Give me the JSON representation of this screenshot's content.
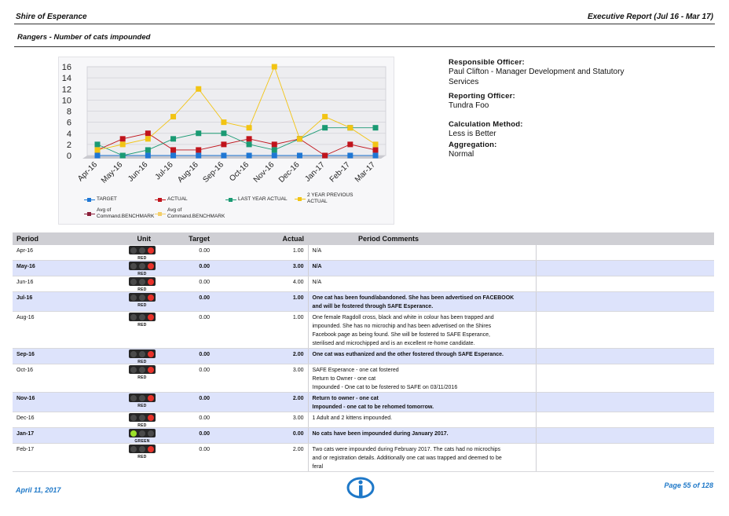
{
  "header": {
    "org": "Shire of Esperance",
    "report": "Executive Report (Jul 16 - Mar 17)",
    "subtitle": "Rangers - Number of cats impounded"
  },
  "info": {
    "responsible_label": "Responsible Officer:",
    "responsible_value": "Paul Clifton - Manager Development and Statutory Services",
    "reporting_label": "Reporting Officer:",
    "reporting_value": "Tundra Foo",
    "calc_label": "Calculation Method:",
    "calc_value": "Less is Better",
    "agg_label": "Aggregation:",
    "agg_value": "Normal"
  },
  "chart_data": {
    "type": "line",
    "categories": [
      "Apr-16",
      "May-16",
      "Jun-16",
      "Jul-16",
      "Aug-16",
      "Sep-16",
      "Oct-16",
      "Nov-16",
      "Dec-16",
      "Jan-17",
      "Feb-17",
      "Mar-17"
    ],
    "ylim": [
      0,
      16
    ],
    "yticks": [
      0,
      2,
      4,
      6,
      8,
      10,
      12,
      14,
      16
    ],
    "grid": true,
    "legend_position": "bottom",
    "series": [
      {
        "name": "TARGET",
        "color": "#1f77d4",
        "values": [
          0,
          0,
          0,
          0,
          0,
          0,
          0,
          0,
          0,
          0,
          0,
          0
        ]
      },
      {
        "name": "ACTUAL",
        "color": "#c0141c",
        "values": [
          1,
          3,
          4,
          1,
          1,
          2,
          3,
          2,
          3,
          0,
          2,
          1
        ]
      },
      {
        "name": "LAST YEAR ACTUAL",
        "color": "#1a9a73",
        "values": [
          2,
          0,
          1,
          3,
          4,
          4,
          2,
          1,
          3,
          5,
          5,
          5
        ]
      },
      {
        "name": "2 YEAR PREVIOUS ACTUAL",
        "color": "#f2c414",
        "values": [
          1,
          2,
          3,
          7,
          12,
          6,
          5,
          16,
          3,
          7,
          5,
          2
        ]
      }
    ],
    "benchmarks": [
      {
        "name": "Avg of Command.BENCHMARK",
        "color": "#8b1f3a"
      },
      {
        "name": "Avg of Command.BENCHMARK",
        "color": "#f4cf6a"
      }
    ]
  },
  "table": {
    "headers": {
      "period": "Period",
      "unit": "Unit",
      "target": "Target",
      "actual": "Actual",
      "comments": "Period Comments"
    },
    "rows": [
      {
        "period": "Apr-16",
        "status": "RED",
        "unit": "#",
        "target": "0.00",
        "actual": "1.00",
        "comments": [
          "N/A"
        ]
      },
      {
        "period": "May-16",
        "status": "RED",
        "unit": "#",
        "target": "0.00",
        "actual": "3.00",
        "comments": [
          "N/A"
        ]
      },
      {
        "period": "Jun-16",
        "status": "RED",
        "unit": "#",
        "target": "0.00",
        "actual": "4.00",
        "comments": [
          "N/A"
        ]
      },
      {
        "period": "Jul-16",
        "status": "RED",
        "unit": "#",
        "target": "0.00",
        "actual": "1.00",
        "comments": [
          "One cat has been found/abandoned. She has been advertised on FACEBOOK",
          "and will be fostered through SAFE Esperance."
        ]
      },
      {
        "period": "Aug-16",
        "status": "RED",
        "unit": "#",
        "target": "0.00",
        "actual": "1.00",
        "comments": [
          "One female Ragdoll cross, black and white in colour has been trapped and",
          "impounded. She has no microchip and has been advertised on the Shires",
          "Facebook page as being found. She will be fostered to SAFE Esperance,",
          "sterilised and microchipped and is an excellent re-home candidate."
        ]
      },
      {
        "period": "Sep-16",
        "status": "RED",
        "unit": "#",
        "target": "0.00",
        "actual": "2.00",
        "comments": [
          "One cat was euthanized and the other fostered through SAFE Esperance."
        ]
      },
      {
        "period": "Oct-16",
        "status": "RED",
        "unit": "#",
        "target": "0.00",
        "actual": "3.00",
        "comments": [
          "SAFE Esperance - one cat fostered",
          "Return to Owner - one cat",
          "Impounded - One cat to be fostered to SAFE on 03/11/2016"
        ]
      },
      {
        "period": "Nov-16",
        "status": "RED",
        "unit": "#",
        "target": "0.00",
        "actual": "2.00",
        "comments": [
          "Return to owner - one cat",
          "Impounded - one cat to be rehomed tomorrow."
        ]
      },
      {
        "period": "Dec-16",
        "status": "RED",
        "unit": "#",
        "target": "0.00",
        "actual": "3.00",
        "comments": [
          "1 Adult and 2 kittens impounded."
        ]
      },
      {
        "period": "Jan-17",
        "status": "GREEN",
        "unit": "#",
        "target": "0.00",
        "actual": "0.00",
        "comments": [
          "No cats have been impounded during January 2017."
        ]
      },
      {
        "period": "Feb-17",
        "status": "RED",
        "unit": "#",
        "target": "0.00",
        "actual": "2.00",
        "comments": [
          "Two cats were impounded during February 2017. The cats had no microchips",
          "and or registration details. Additionally one cat was trapped and deemed to be",
          "feral"
        ]
      }
    ]
  },
  "footer": {
    "date": "April 11, 2017",
    "page": "Page 55 of 128"
  }
}
